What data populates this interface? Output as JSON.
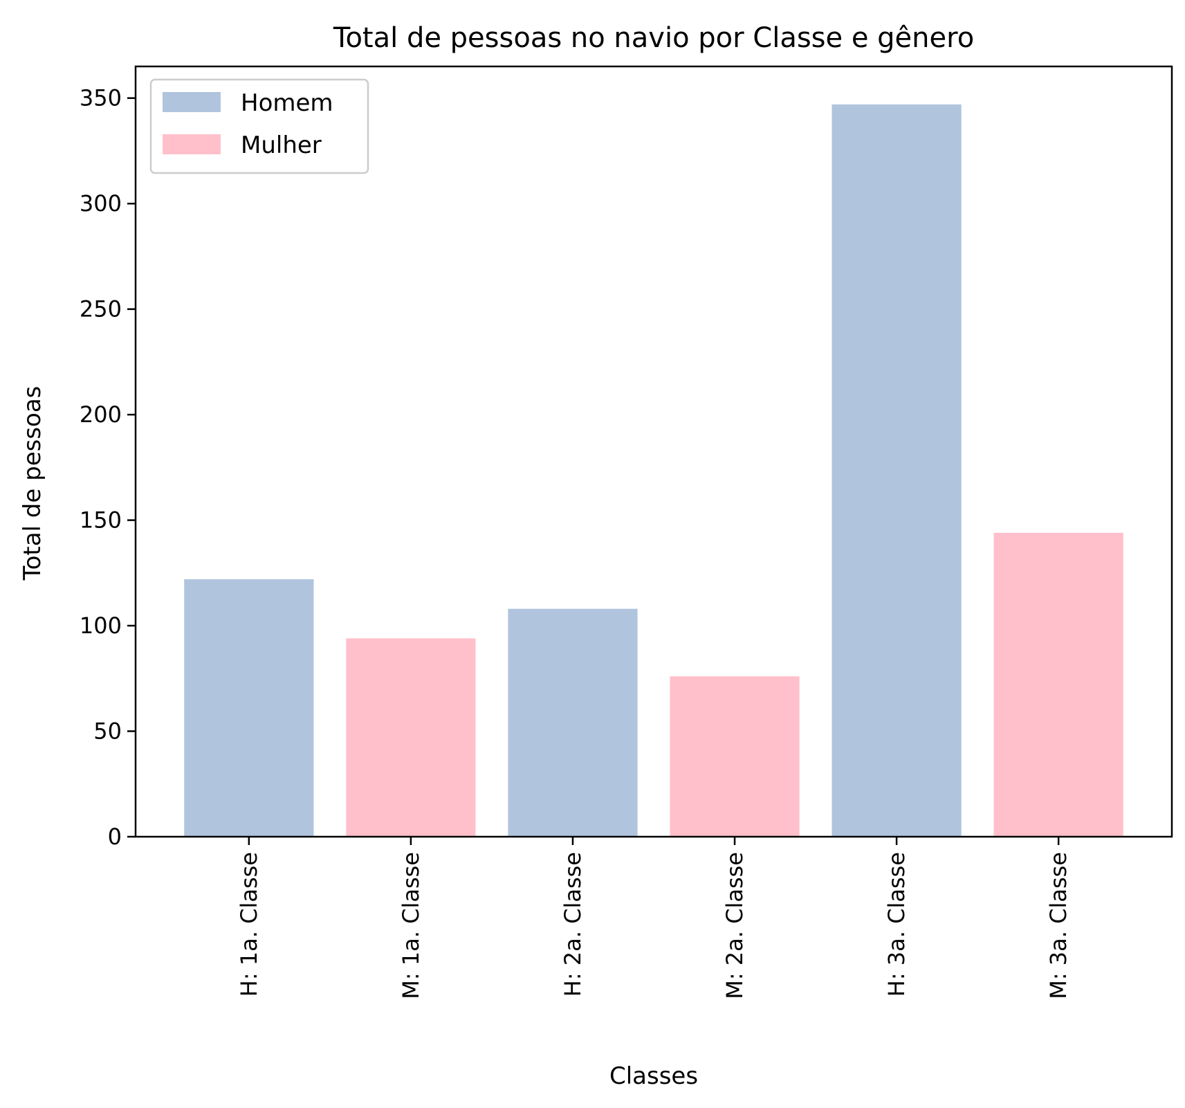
{
  "chart_data": {
    "type": "bar",
    "title": "Total de pessoas no navio por Classe e gênero",
    "xlabel": "Classes",
    "ylabel": "Total de pessoas",
    "ylim": [
      0,
      365
    ],
    "yticks": [
      0,
      50,
      100,
      150,
      200,
      250,
      300,
      350
    ],
    "categories": [
      "H: 1a. Classe",
      "M: 1a. Classe",
      "H: 2a. Classe",
      "M: 2a. Classe",
      "H: 3a. Classe",
      "M: 3a. Classe"
    ],
    "series": [
      {
        "name": "Homem",
        "color": "#b0c4de",
        "values": [
          122,
          null,
          108,
          null,
          347,
          null
        ]
      },
      {
        "name": "Mulher",
        "color": "#ffc0cb",
        "values": [
          null,
          94,
          null,
          76,
          null,
          144
        ]
      }
    ],
    "grid": false,
    "legend": "top-left"
  }
}
